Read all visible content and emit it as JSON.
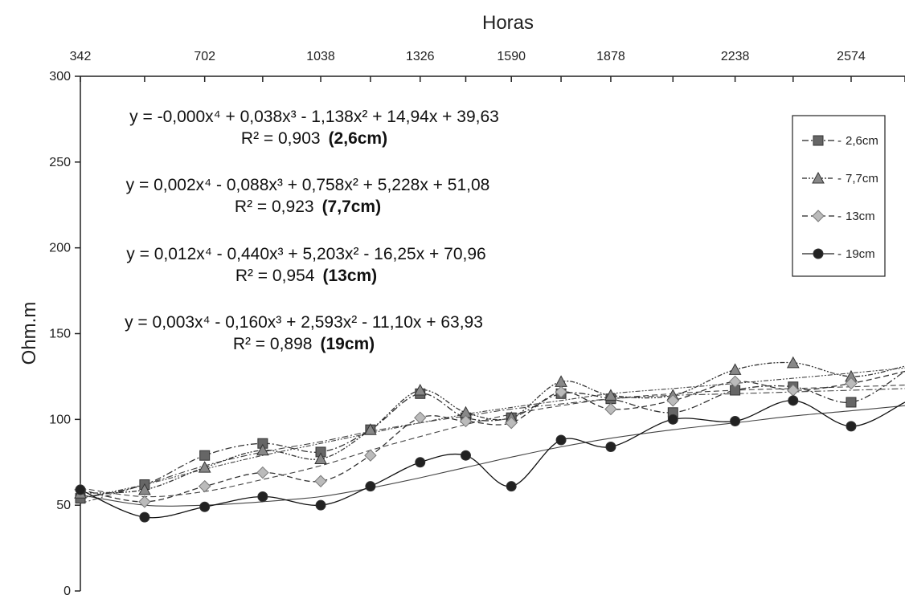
{
  "chart_data": {
    "type": "line",
    "xlabel": "Horas",
    "ylabel": "Ohm.m",
    "x_ticks": [
      342,
      702,
      1038,
      1326,
      1590,
      1878,
      2238,
      2574
    ],
    "y_ticks": [
      0,
      50,
      100,
      150,
      200,
      250,
      300
    ],
    "ylim": [
      0,
      300
    ],
    "x": [
      342,
      528,
      702,
      870,
      1038,
      1182,
      1326,
      1458,
      1590,
      1734,
      1878,
      2058,
      2238,
      2406,
      2574,
      2730
    ],
    "legend_position": "top-right",
    "series": [
      {
        "name": "2,6cm",
        "marker": "square",
        "color": "#666666",
        "dash": "8,3,2,3",
        "values": [
          54,
          62,
          79,
          86,
          81,
          94,
          115,
          101,
          101,
          115,
          112,
          104,
          117,
          119,
          110,
          128
        ],
        "equation": "y = -0,000x⁴ + 0,038x³ - 1,138x² + 14,94x + 39,63",
        "r2": "R² = 0,903",
        "r2_tag": "(2,6cm)",
        "trend": [
          51,
          62,
          73,
          81,
          87,
          93,
          98,
          102,
          106,
          109,
          112,
          114,
          115,
          116,
          117,
          118
        ]
      },
      {
        "name": "7,7cm",
        "marker": "triangle",
        "color": "#888888",
        "dash": "6,2,2,2,2,2",
        "values": [
          57,
          59,
          72,
          82,
          77,
          94,
          117,
          104,
          101,
          122,
          114,
          114,
          129,
          133,
          125,
          131
        ],
        "equation": "y = 0,002x⁴ - 0,088x³ + 0,758x² + 5,228x + 51,08",
        "r2": "R² = 0,923",
        "r2_tag": "(7,7cm)",
        "trend": [
          54,
          62,
          71,
          79,
          86,
          92,
          98,
          103,
          107,
          111,
          115,
          118,
          121,
          124,
          127,
          130
        ]
      },
      {
        "name": "13cm",
        "marker": "diamond",
        "color": "#bbbbbb",
        "dash": "7,4",
        "values": [
          59,
          52,
          61,
          69,
          64,
          79,
          101,
          99,
          98,
          116,
          106,
          111,
          122,
          117,
          121,
          128
        ],
        "equation": "y = 0,012x⁴ - 0,440x³ + 5,203x² - 16,25x + 70,96",
        "r2": "R² = 0,954",
        "r2_tag": "(13cm)",
        "trend": [
          60,
          55,
          58,
          65,
          73,
          82,
          90,
          97,
          103,
          108,
          112,
          115,
          117,
          118,
          119,
          120
        ]
      },
      {
        "name": "19cm",
        "marker": "circle",
        "color": "#222222",
        "dash": "",
        "values": [
          59,
          43,
          49,
          55,
          50,
          61,
          75,
          79,
          61,
          88,
          84,
          100,
          99,
          111,
          96,
          110
        ],
        "equation": "y = 0,003x⁴ - 0,160x³ + 2,593x² - 11,10x + 63,93",
        "r2": "R² = 0,898",
        "r2_tag": "(19cm)",
        "trend": [
          56,
          50,
          50,
          52,
          55,
          60,
          66,
          72,
          78,
          84,
          89,
          94,
          98,
          102,
          105,
          108
        ]
      }
    ]
  }
}
